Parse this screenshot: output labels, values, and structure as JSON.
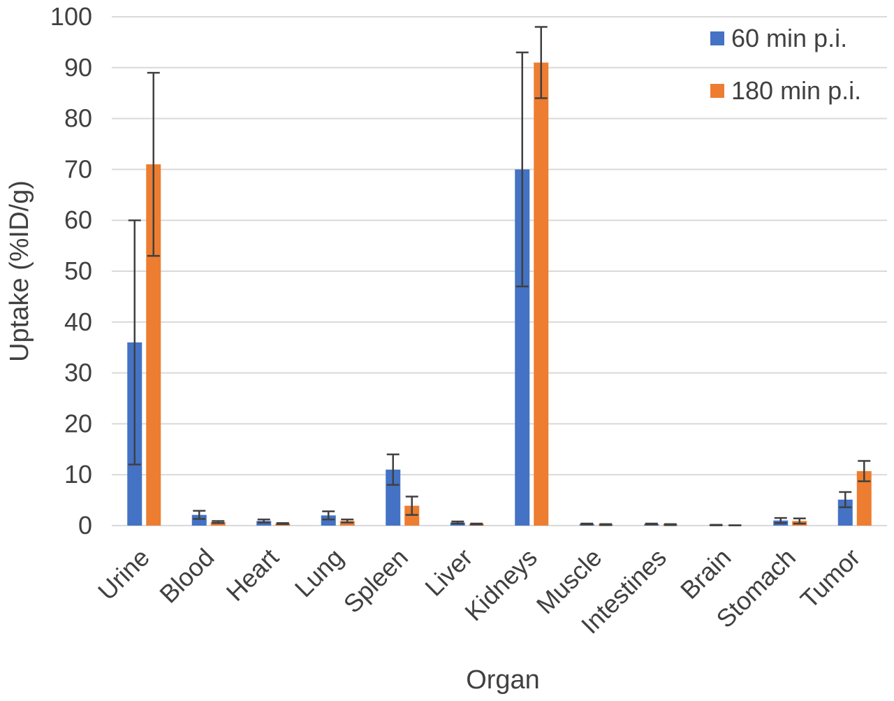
{
  "chart_data": {
    "type": "bar",
    "title": "",
    "xlabel": "Organ",
    "ylabel": "Uptake (%ID/g)",
    "ylim": [
      0,
      100
    ],
    "yticks": [
      0,
      10,
      20,
      30,
      40,
      50,
      60,
      70,
      80,
      90,
      100
    ],
    "grid": true,
    "legend_position": "top-right",
    "categories": [
      "Urine",
      "Blood",
      "Heart",
      "Lung",
      "Spleen",
      "Liver",
      "Kidneys",
      "Muscle",
      "Intestines",
      "Brain",
      "Stomach",
      "Tumor"
    ],
    "series": [
      {
        "name": "60 min p.i.",
        "color": "#4472c4",
        "values": [
          36,
          2.1,
          0.9,
          2.0,
          11,
          0.6,
          70,
          0.3,
          0.3,
          0.1,
          1.0,
          5.1
        ],
        "errors": [
          24,
          0.8,
          0.3,
          0.8,
          3,
          0.2,
          23,
          0.1,
          0.1,
          0.05,
          0.5,
          1.5
        ]
      },
      {
        "name": "180 min p.i.",
        "color": "#ed7d31",
        "values": [
          71,
          0.7,
          0.4,
          0.9,
          3.9,
          0.3,
          91,
          0.2,
          0.2,
          0.05,
          0.9,
          10.7
        ],
        "errors": [
          18,
          0.2,
          0.1,
          0.3,
          1.8,
          0.1,
          7,
          0.1,
          0.1,
          0.02,
          0.5,
          2.0
        ]
      }
    ]
  }
}
